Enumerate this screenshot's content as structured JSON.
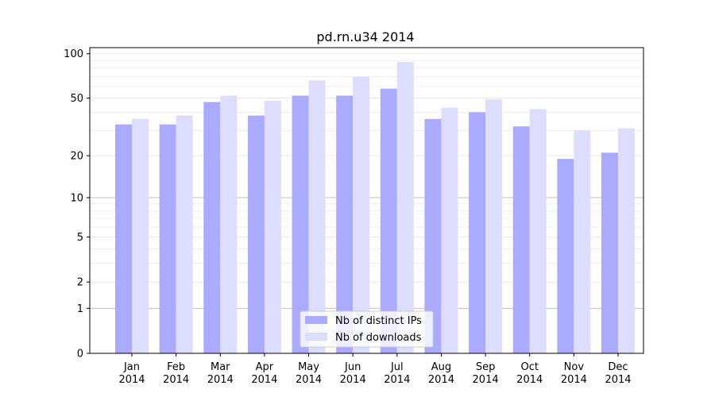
{
  "chart_data": {
    "type": "bar",
    "title": "pd.rn.u34 2014",
    "xlabel": "",
    "ylabel": "",
    "yscale": "symlog",
    "ylim": [
      0,
      110
    ],
    "yticks": [
      0,
      1,
      2,
      5,
      10,
      20,
      50,
      100
    ],
    "grid": "y",
    "legend_position": "bottom-center",
    "categories": [
      [
        "Jan",
        "2014"
      ],
      [
        "Feb",
        "2014"
      ],
      [
        "Mar",
        "2014"
      ],
      [
        "Apr",
        "2014"
      ],
      [
        "May",
        "2014"
      ],
      [
        "Jun",
        "2014"
      ],
      [
        "Jul",
        "2014"
      ],
      [
        "Aug",
        "2014"
      ],
      [
        "Sep",
        "2014"
      ],
      [
        "Oct",
        "2014"
      ],
      [
        "Nov",
        "2014"
      ],
      [
        "Dec",
        "2014"
      ]
    ],
    "series": [
      {
        "name": "Nb of distinct IPs",
        "color": "#aaaaff",
        "values": [
          33,
          33,
          47,
          38,
          52,
          52,
          58,
          36,
          40,
          32,
          19,
          21
        ]
      },
      {
        "name": "Nb of downloads",
        "color": "#ddddff",
        "values": [
          36,
          38,
          52,
          48,
          66,
          70,
          88,
          43,
          49,
          42,
          30,
          31
        ]
      }
    ]
  }
}
